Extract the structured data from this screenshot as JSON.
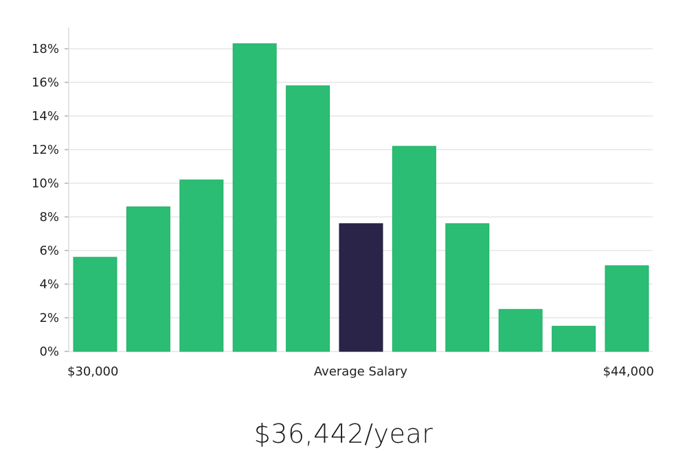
{
  "chart_data": {
    "type": "bar",
    "categories": [
      "1",
      "2",
      "3",
      "4",
      "5",
      "6",
      "7",
      "8",
      "9",
      "10",
      "11"
    ],
    "values": [
      5.6,
      8.6,
      10.2,
      18.3,
      15.8,
      7.6,
      12.2,
      7.6,
      2.5,
      1.5,
      5.1
    ],
    "highlight_index": 5,
    "ylim": [
      0,
      19
    ],
    "yticks": [
      0,
      2,
      4,
      6,
      8,
      10,
      12,
      14,
      16,
      18
    ],
    "ytick_format": "{v}%",
    "x_min_label": "$30,000",
    "x_center_label": "Average Salary",
    "x_max_label": "$44,000",
    "grid": true,
    "colors": {
      "bar": "#2bbd74",
      "bar_edge": "#22b068",
      "highlight": "#2a2548",
      "grid": "#e6e6e6",
      "axis": "#dcdcdc"
    }
  },
  "salary_display": "$36,442/year"
}
